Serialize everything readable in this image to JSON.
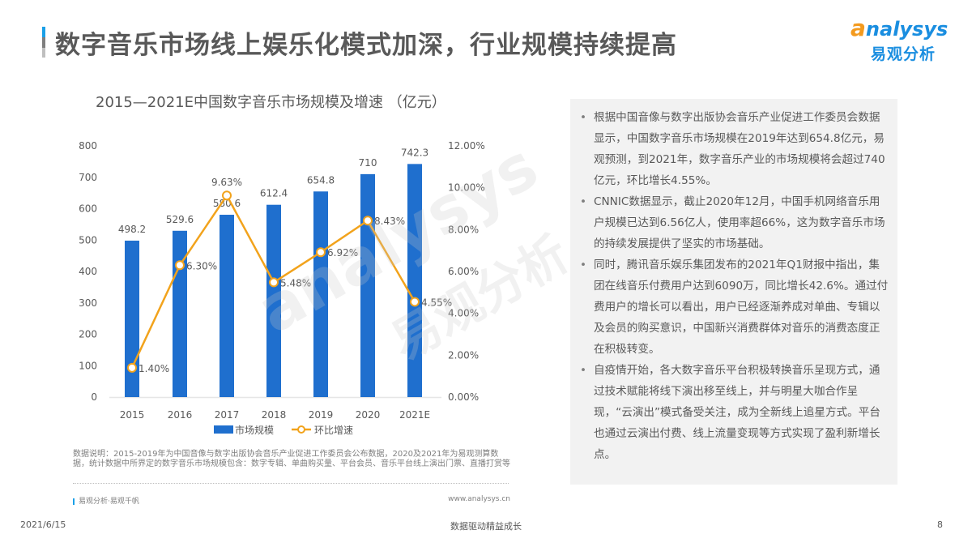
{
  "header": {
    "title": "数字音乐市场线上娱乐化模式加深，行业规模持续提高",
    "accent_colors": [
      "#1aa0e8",
      "#7f7f7f",
      "#bfbfbf"
    ]
  },
  "logo": {
    "brand_en_a": "a",
    "brand_en_rest": "nalysys",
    "brand_cn": "易观分析"
  },
  "watermark": {
    "en": "analysys",
    "cn": "易观分析"
  },
  "chart_data": {
    "type": "bar",
    "title": "2015—2021E中国数字音乐市场规模及增速 （亿元）",
    "categories": [
      "2015",
      "2016",
      "2017",
      "2018",
      "2019",
      "2020",
      "2021E"
    ],
    "series": [
      {
        "name": "市场规模",
        "type": "bar",
        "axis": "left",
        "color": "#1f6fce",
        "values": [
          498.2,
          529.6,
          580.6,
          612.4,
          654.8,
          710,
          742.3
        ],
        "labels": [
          "498.2",
          "529.6",
          "580.6",
          "612.4",
          "654.8",
          "710",
          "742.3"
        ]
      },
      {
        "name": "环比增速",
        "type": "line",
        "axis": "right",
        "color": "#f2a31c",
        "values": [
          1.4,
          6.3,
          9.63,
          5.48,
          6.92,
          8.43,
          4.55
        ],
        "labels": [
          "1.40%",
          "6.30%",
          "9.63%",
          "5.48%",
          "6.92%",
          "8.43%",
          "4.55%"
        ]
      }
    ],
    "y_left": {
      "min": 0,
      "max": 800,
      "ticks": [
        "0",
        "100",
        "200",
        "300",
        "400",
        "500",
        "600",
        "700",
        "800"
      ]
    },
    "y_right": {
      "min": 0,
      "max": 12,
      "ticks": [
        "0.00%",
        "2.00%",
        "4.00%",
        "6.00%",
        "8.00%",
        "10.00%",
        "12.00%"
      ]
    },
    "xlabel": "",
    "ylabel": "",
    "grid": false,
    "legend_position": "bottom",
    "legend": [
      "市场规模",
      "环比增速"
    ]
  },
  "chart_note": {
    "text": "数据说明：2015-2019年为中国音像与数字出版协会音乐产业促进工作委员会公布数据，2020及2021年为易观测算数据，统计数据中所界定的数字音乐市场规模包含：数字专辑、单曲购买量、平台会员、音乐平台线上演出门票、直播打赏等",
    "source_left": "易观分析·易观千帆",
    "source_right": "www.analysys.cn"
  },
  "panel": {
    "bullets": [
      "根据中国音像与数字出版协会音乐产业促进工作委员会数据显示，中国数字音乐市场规模在2019年达到654.8亿元，易观预测，到2021年，数字音乐产业的市场规模将会超过740亿元，环比增长4.55%。",
      "CNNIC数据显示，截止2020年12月，中国手机网络音乐用户规模已达到6.56亿人，使用率超66%，这为数字音乐市场的持续发展提供了坚实的市场基础。",
      "同时，腾讯音乐娱乐集团发布的2021年Q1财报中指出，集团在线音乐付费用户达到6090万，同比增长42.6%。通过付费用户的增长可以看出，用户已经逐渐养成对单曲、专辑以及会员的购买意识，中国新兴消费群体对音乐的消费态度正在积极转变。",
      "自疫情开始，各大数字音乐平台积极转换音乐呈现方式，通过技术赋能将线下演出移至线上，并与明星大咖合作呈现，“云演出”模式备受关注，成为全新线上追星方式。平台也通过云演出付费、线上流量变现等方式实现了盈利新增长点。"
    ],
    "bullet_glyph": "•"
  },
  "footer": {
    "date": "2021/6/15",
    "slogan": "数据驱动精益成长",
    "page": "8"
  }
}
